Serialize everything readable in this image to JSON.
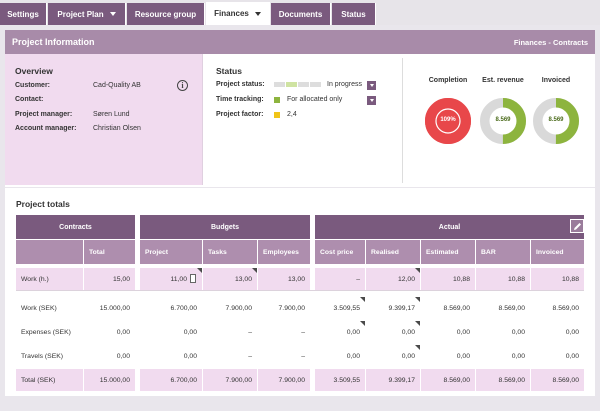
{
  "tabs": [
    {
      "label": "Settings",
      "dropdown": false,
      "active": false
    },
    {
      "label": "Project Plan",
      "dropdown": true,
      "active": false
    },
    {
      "label": "Resource group",
      "dropdown": false,
      "active": false
    },
    {
      "label": "Finances",
      "dropdown": true,
      "active": true
    },
    {
      "label": "Documents",
      "dropdown": false,
      "active": false
    },
    {
      "label": "Status",
      "dropdown": false,
      "active": false
    }
  ],
  "header": {
    "title": "Project Information",
    "breadcrumb": "Finances - Contracts"
  },
  "overview": {
    "title": "Overview",
    "customer_label": "Customer:",
    "customer_value": "Cad-Quality AB",
    "contact_label": "Contact:",
    "contact_value": "",
    "pm_label": "Project manager:",
    "pm_value": "Søren Lund",
    "am_label": "Account manager:",
    "am_value": "Christian Olsen",
    "info_icon": "info-icon"
  },
  "status": {
    "title": "Status",
    "project_status_label": "Project status:",
    "project_status_value": "In progress",
    "time_tracking_label": "Time tracking:",
    "time_tracking_value": "For allocated only",
    "project_factor_label": "Project factor:",
    "project_factor_value": "2,4",
    "colors": {
      "green": "#8db43e",
      "yellow": "#f0c419",
      "progress_light": "#cfe3a2",
      "progress_grey": "#dddddd"
    }
  },
  "donuts": [
    {
      "title": "Completion",
      "value": "109%",
      "fraction": 1.0,
      "color": "#e8474a",
      "track": "#e8474a"
    },
    {
      "title": "Est. revenue",
      "value": "8.569",
      "fraction": 0.5,
      "color": "#8db43e",
      "track": "#d9d9d9"
    },
    {
      "title": "Invoiced",
      "value": "8.569",
      "fraction": 0.5,
      "color": "#8db43e",
      "track": "#d9d9d9"
    }
  ],
  "totals": {
    "title": "Project totals",
    "groups": {
      "contracts": "Contracts",
      "budgets": "Budgets",
      "actual": "Actual"
    },
    "columns": {
      "total": "Total",
      "project": "Project",
      "tasks": "Tasks",
      "employees": "Employees",
      "cost_price": "Cost price",
      "realised": "Realised",
      "estimated": "Estimated",
      "bar": "BAR",
      "invoiced": "Invoiced"
    },
    "rows": {
      "work_h": {
        "label": "Work (h.)",
        "total": "15,00",
        "project": "11,00",
        "tasks": "13,00",
        "employees": "13,00",
        "cost_price": "–",
        "realised": "12,00",
        "estimated": "10,88",
        "bar": "10,88",
        "invoiced": "10,88"
      },
      "work_sek": {
        "label": "Work (SEK)",
        "total": "15.000,00",
        "project": "6.700,00",
        "tasks": "7.900,00",
        "employees": "7.900,00",
        "cost_price": "3.509,55",
        "realised": "9.399,17",
        "estimated": "8.569,00",
        "bar": "8.569,00",
        "invoiced": "8.569,00"
      },
      "expenses_sek": {
        "label": "Expenses (SEK)",
        "total": "0,00",
        "project": "0,00",
        "tasks": "–",
        "employees": "–",
        "cost_price": "0,00",
        "realised": "0,00",
        "estimated": "0,00",
        "bar": "0,00",
        "invoiced": "0,00"
      },
      "travels_sek": {
        "label": "Travels (SEK)",
        "total": "0,00",
        "project": "0,00",
        "tasks": "–",
        "employees": "–",
        "cost_price": "0,00",
        "realised": "0,00",
        "estimated": "0,00",
        "bar": "0,00",
        "invoiced": "0,00"
      },
      "total_sek": {
        "label": "Total (SEK)",
        "total": "15.000,00",
        "project": "6.700,00",
        "tasks": "7.900,00",
        "employees": "7.900,00",
        "cost_price": "3.509,55",
        "realised": "9.399,17",
        "estimated": "8.569,00",
        "bar": "8.569,00",
        "invoiced": "8.569,00"
      }
    }
  }
}
